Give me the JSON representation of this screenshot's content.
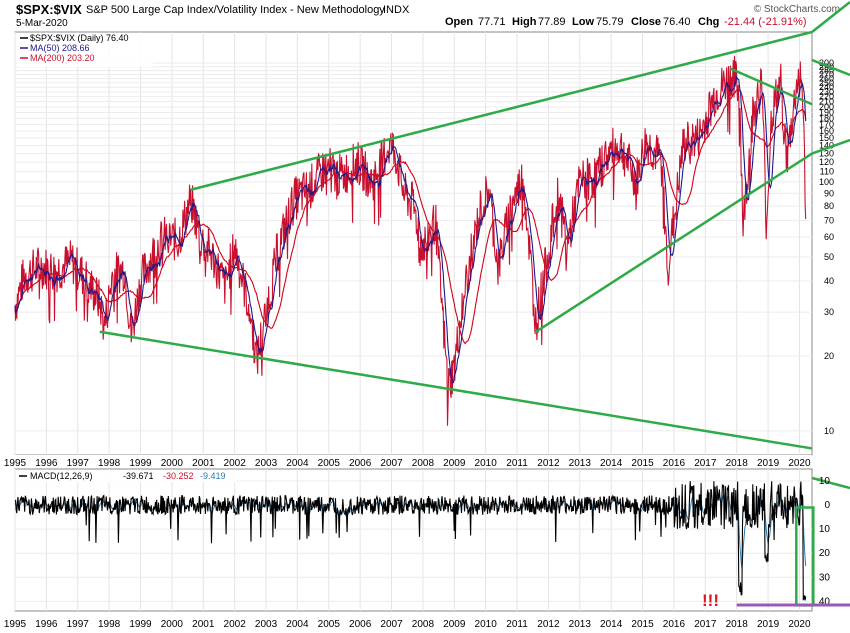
{
  "chart_data": {
    "type": "line",
    "header": {
      "symbol": "$SPX:$VIX",
      "title": "S&P 500 Large Cap Index/Volatility Index - New Methodology",
      "exchange": "INDX",
      "date": "5-Mar-2020",
      "open_label": "Open",
      "open": "77.71",
      "high_label": "High",
      "high": "77.89",
      "low_label": "Low",
      "low": "75.79",
      "close_label": "Close",
      "close": "76.40",
      "chg_label": "Chg",
      "chg": "-21.44 (-21.91%)",
      "watermark": "© StockCharts.com"
    },
    "legend": [
      {
        "text": "$SPX:$VIX (Daily) 76.40",
        "color": "#000000"
      },
      {
        "text": "MA(50) 208.66",
        "color": "#1a1a8c"
      },
      {
        "text": "MA(200) 203.20",
        "color": "#c8102e"
      }
    ],
    "y_scale": "log",
    "ylim": [
      8,
      400
    ],
    "yticks": [
      10,
      20,
      30,
      40,
      50,
      60,
      70,
      80,
      90,
      100,
      110,
      120,
      130,
      140,
      150,
      160,
      170,
      180,
      190,
      200,
      210,
      220,
      230,
      240,
      250,
      260,
      270,
      280,
      290,
      300
    ],
    "years": [
      "1995",
      "1996",
      "1997",
      "1998",
      "1999",
      "2000",
      "2001",
      "2002",
      "2003",
      "2004",
      "2005",
      "2006",
      "2007",
      "2008",
      "2009",
      "2010",
      "2011",
      "2012",
      "2013",
      "2014",
      "2015",
      "2016",
      "2017",
      "2018",
      "2019",
      "2020"
    ],
    "xlim": [
      1995.0,
      2020.4
    ],
    "price_anchors": [
      [
        1995.0,
        32
      ],
      [
        1995.3,
        42
      ],
      [
        1995.8,
        46
      ],
      [
        1996.3,
        44
      ],
      [
        1996.8,
        48
      ],
      [
        1997.3,
        40
      ],
      [
        1997.7,
        33
      ],
      [
        1997.85,
        26
      ],
      [
        1998.1,
        42
      ],
      [
        1998.5,
        45
      ],
      [
        1998.7,
        24
      ],
      [
        1999.0,
        40
      ],
      [
        1999.5,
        55
      ],
      [
        1999.8,
        60
      ],
      [
        2000.2,
        58
      ],
      [
        2000.6,
        85
      ],
      [
        2000.9,
        60
      ],
      [
        2001.3,
        50
      ],
      [
        2001.7,
        38
      ],
      [
        2002.0,
        55
      ],
      [
        2002.5,
        30
      ],
      [
        2002.7,
        19
      ],
      [
        2003.0,
        30
      ],
      [
        2003.4,
        55
      ],
      [
        2003.9,
        85
      ],
      [
        2004.4,
        95
      ],
      [
        2004.9,
        115
      ],
      [
        2005.4,
        105
      ],
      [
        2005.9,
        120
      ],
      [
        2006.4,
        100
      ],
      [
        2006.9,
        140
      ],
      [
        2007.1,
        135
      ],
      [
        2007.4,
        90
      ],
      [
        2007.7,
        80
      ],
      [
        2008.0,
        55
      ],
      [
        2008.4,
        70
      ],
      [
        2008.8,
        15
      ],
      [
        2009.0,
        18
      ],
      [
        2009.3,
        35
      ],
      [
        2009.8,
        75
      ],
      [
        2010.1,
        95
      ],
      [
        2010.4,
        45
      ],
      [
        2010.8,
        80
      ],
      [
        2011.2,
        105
      ],
      [
        2011.6,
        27
      ],
      [
        2011.9,
        45
      ],
      [
        2012.3,
        90
      ],
      [
        2012.6,
        55
      ],
      [
        2013.0,
        100
      ],
      [
        2013.5,
        105
      ],
      [
        2013.9,
        130
      ],
      [
        2014.3,
        140
      ],
      [
        2014.8,
        100
      ],
      [
        2015.1,
        145
      ],
      [
        2015.6,
        120
      ],
      [
        2015.8,
        45
      ],
      [
        2016.0,
        70
      ],
      [
        2016.3,
        140
      ],
      [
        2016.8,
        150
      ],
      [
        2017.3,
        220
      ],
      [
        2017.9,
        270
      ],
      [
        2018.1,
        220
      ],
      [
        2018.2,
        65
      ],
      [
        2018.5,
        180
      ],
      [
        2018.8,
        250
      ],
      [
        2018.95,
        65
      ],
      [
        2019.1,
        180
      ],
      [
        2019.4,
        250
      ],
      [
        2019.6,
        120
      ],
      [
        2019.9,
        240
      ],
      [
        2020.0,
        270
      ],
      [
        2020.1,
        230
      ],
      [
        2020.2,
        76
      ]
    ],
    "trendlines": [
      {
        "label": "upper resistance",
        "from": [
          2000.6,
          93
        ],
        "to": [
          2020.4,
          400
        ]
      },
      {
        "label": "upper right channel",
        "from": [
          2017.8,
          285
        ],
        "to": [
          2020.4,
          205
        ]
      },
      {
        "label": "lower support",
        "from": [
          1997.7,
          25
        ],
        "to": [
          2020.4,
          8.5
        ]
      },
      {
        "label": "rising support",
        "from": [
          2011.6,
          25
        ],
        "to": [
          2020.4,
          130
        ]
      }
    ],
    "macd": {
      "label": "MACD(12,26,9)",
      "macd_value": "-39.671",
      "signal_value": "-30.252",
      "hist_value": "-9.419",
      "yticks": [
        10,
        0,
        -10,
        -20,
        -30,
        -40
      ],
      "ylim": [
        -44,
        15
      ],
      "annotation": "!!!"
    }
  },
  "colors": {
    "price": "#c8102e",
    "ma50": "#1a1a8c",
    "ma200": "#d0021b",
    "trend": "#2eaa47",
    "macd_line": "#000000",
    "macd_signal": "#c8102e",
    "macd_hist": "#2a7ab0",
    "highlight_box": "#2eaa47",
    "purple_line": "#9b59b6",
    "exclaim": "#e0151b"
  }
}
